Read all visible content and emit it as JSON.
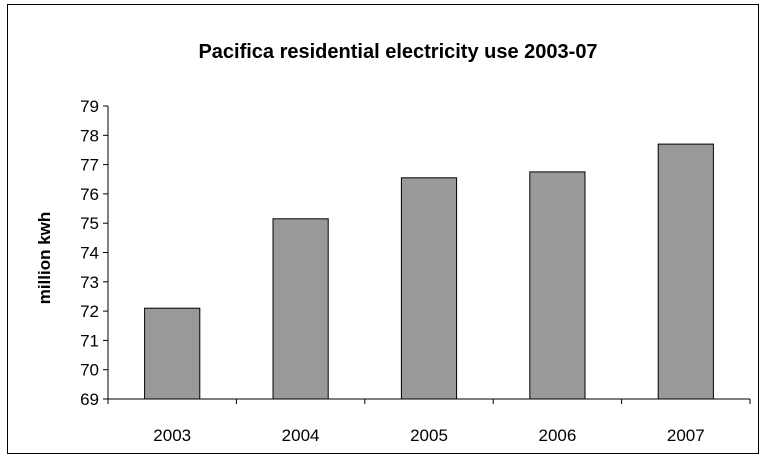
{
  "chart_data": {
    "type": "bar",
    "title": "Pacifica residential electricity use 2003-07",
    "xlabel": "",
    "ylabel": "million kwh",
    "categories": [
      "2003",
      "2004",
      "2005",
      "2006",
      "2007"
    ],
    "values": [
      72.1,
      75.15,
      76.55,
      76.75,
      77.7
    ],
    "ylim": [
      69,
      79
    ],
    "yticks": [
      "69",
      "70",
      "71",
      "72",
      "73",
      "74",
      "75",
      "76",
      "77",
      "78",
      "79"
    ],
    "grid": false,
    "legend": "none",
    "bar_color": "#999999"
  }
}
